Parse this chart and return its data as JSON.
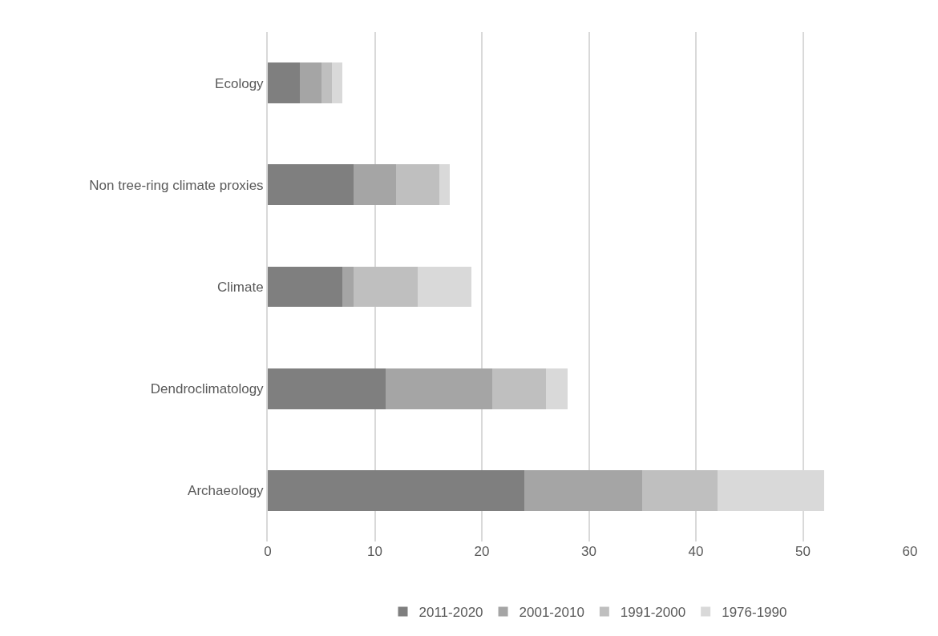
{
  "chart_data": {
    "type": "bar",
    "orientation": "horizontal",
    "stacked": true,
    "categories": [
      "Ecology",
      "Non tree-ring climate proxies",
      "Climate",
      "Dendroclimatology",
      "Archaeology"
    ],
    "series": [
      {
        "name": "2011-2020",
        "color": "#7f7f7f",
        "values": [
          3,
          8,
          7,
          11,
          24
        ]
      },
      {
        "name": "2001-2010",
        "color": "#a5a5a5",
        "values": [
          2,
          4,
          1,
          10,
          11
        ]
      },
      {
        "name": "1991-2000",
        "color": "#bfbfbf",
        "values": [
          1,
          4,
          6,
          5,
          7
        ]
      },
      {
        "name": "1976-1990",
        "color": "#d9d9d9",
        "values": [
          1,
          1,
          5,
          2,
          10
        ]
      }
    ],
    "xlim": [
      0,
      60
    ],
    "xticks": [
      0,
      10,
      20,
      30,
      40,
      50,
      60
    ],
    "grid": "x",
    "legend": "bottom"
  }
}
